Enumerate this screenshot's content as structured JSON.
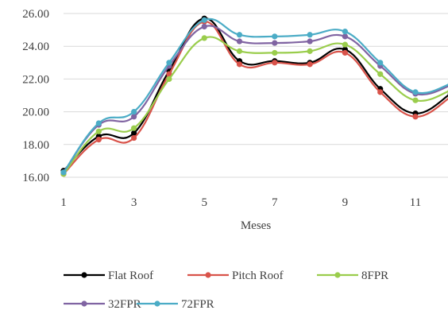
{
  "chart_data": {
    "type": "line",
    "title": "",
    "xlabel": "Meses",
    "ylabel": "",
    "x": [
      1,
      2,
      3,
      4,
      5,
      6,
      7,
      8,
      9,
      10,
      11,
      12
    ],
    "x_ticks": [
      "1",
      "3",
      "5",
      "7",
      "9",
      "11"
    ],
    "ylim": [
      16,
      26
    ],
    "y_ticks": [
      "16.00",
      "18.00",
      "20.00",
      "22.00",
      "24.00",
      "26.00"
    ],
    "grid": "horizontal",
    "legend_position": "bottom",
    "series": [
      {
        "name": "Flat Roof",
        "color": "#000000",
        "values": [
          16.4,
          18.5,
          18.7,
          22.5,
          25.7,
          23.1,
          23.1,
          23.0,
          23.8,
          21.4,
          19.9,
          21.1
        ]
      },
      {
        "name": "Pitch Roof",
        "color": "#d9534a",
        "values": [
          16.2,
          18.3,
          18.4,
          22.3,
          25.5,
          22.9,
          23.0,
          22.9,
          23.6,
          21.2,
          19.7,
          20.9
        ]
      },
      {
        "name": "8FPR",
        "color": "#9acd4c",
        "values": [
          16.2,
          18.8,
          19.0,
          22.0,
          24.5,
          23.7,
          23.6,
          23.7,
          24.1,
          22.3,
          20.7,
          21.3
        ]
      },
      {
        "name": "32FPR",
        "color": "#8064a2",
        "values": [
          16.3,
          19.2,
          19.7,
          22.8,
          25.2,
          24.3,
          24.2,
          24.3,
          24.6,
          22.8,
          21.1,
          21.6
        ]
      },
      {
        "name": "72FPR",
        "color": "#4bacc6",
        "values": [
          16.3,
          19.3,
          20.0,
          23.0,
          25.6,
          24.7,
          24.6,
          24.7,
          24.9,
          23.0,
          21.2,
          21.7
        ]
      }
    ]
  }
}
